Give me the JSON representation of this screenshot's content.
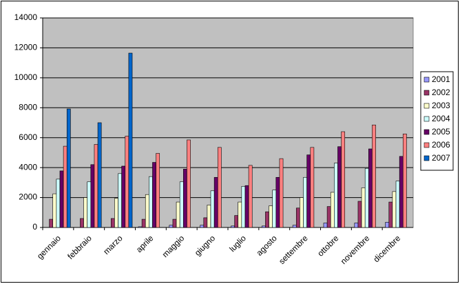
{
  "chart_data": {
    "type": "bar",
    "categories": [
      "gennaio",
      "febbraio",
      "marzo",
      "aprile",
      "maggio",
      "giugno",
      "luglio",
      "agosto",
      "settembre",
      "ottobre",
      "novembre",
      "dicembre"
    ],
    "series": [
      {
        "name": "2001",
        "color": "#9999ff",
        "values": [
          0,
          0,
          0,
          50,
          150,
          150,
          100,
          100,
          150,
          300,
          300,
          350
        ]
      },
      {
        "name": "2002",
        "color": "#993366",
        "values": [
          550,
          600,
          600,
          550,
          550,
          650,
          800,
          1050,
          1300,
          1400,
          1750,
          1700
        ]
      },
      {
        "name": "2003",
        "color": "#ffffcc",
        "values": [
          2250,
          2000,
          1950,
          2200,
          1700,
          1500,
          1700,
          1450,
          2000,
          2350,
          2650,
          2400
        ]
      },
      {
        "name": "2004",
        "color": "#ccffff",
        "values": [
          3230,
          3050,
          3600,
          3400,
          3050,
          2450,
          2750,
          2500,
          3350,
          4300,
          3950,
          3100
        ]
      },
      {
        "name": "2005",
        "color": "#660066",
        "values": [
          3780,
          4200,
          4100,
          4350,
          3900,
          3350,
          2800,
          3350,
          4850,
          5400,
          5250,
          4750
        ]
      },
      {
        "name": "2006",
        "color": "#ff8080",
        "values": [
          5430,
          5550,
          6100,
          4950,
          5850,
          5350,
          4150,
          4600,
          5350,
          6400,
          6850,
          6250
        ]
      },
      {
        "name": "2007",
        "color": "#0066cc",
        "values": [
          7920,
          7000,
          11650,
          null,
          null,
          null,
          null,
          null,
          null,
          null,
          null,
          null
        ]
      }
    ],
    "ylim": [
      0,
      14000
    ],
    "yticks": [
      0,
      2000,
      4000,
      6000,
      8000,
      10000,
      12000,
      14000
    ],
    "grid": true,
    "legend": "right",
    "plot_background": "#c0c0c0"
  }
}
